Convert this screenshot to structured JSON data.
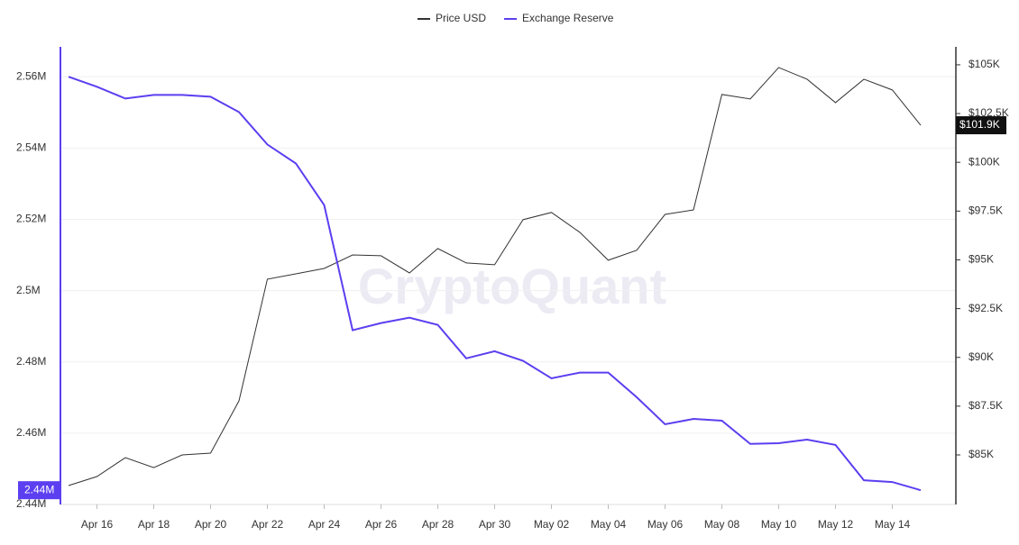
{
  "chart_data": {
    "type": "line",
    "watermark": "CryptoQuant",
    "categories": [
      null,
      "Apr 16",
      null,
      "Apr 18",
      null,
      "Apr 20",
      null,
      "Apr 22",
      null,
      "Apr 24",
      null,
      "Apr 26",
      null,
      "Apr 28",
      null,
      "Apr 30",
      null,
      "May 02",
      null,
      "May 04",
      null,
      "May 06",
      null,
      "May 08",
      null,
      "May 10",
      null,
      "May 12",
      null,
      "May 14",
      null
    ],
    "ylim": [
      2.44,
      2.5684
    ],
    "yticks": [
      {
        "value": 2.44,
        "label": "2.44M"
      },
      {
        "value": 2.46,
        "label": "2.46M"
      },
      {
        "value": 2.48,
        "label": "2.48M"
      },
      {
        "value": 2.5,
        "label": "2.5M"
      },
      {
        "value": 2.52,
        "label": "2.52M"
      },
      {
        "value": 2.54,
        "label": "2.54M"
      },
      {
        "value": 2.56,
        "label": "2.56M"
      }
    ],
    "y2lim": [
      82.46,
      105.92
    ],
    "y2ticks": [
      {
        "value": 85,
        "label": "$85K"
      },
      {
        "value": 87.5,
        "label": "$87.5K"
      },
      {
        "value": 90,
        "label": "$90K"
      },
      {
        "value": 92.5,
        "label": "$92.5K"
      },
      {
        "value": 95,
        "label": "$95K"
      },
      {
        "value": 97.5,
        "label": "$97.5K"
      },
      {
        "value": 100,
        "label": "$100K"
      },
      {
        "value": 102.5,
        "label": "$102.5K"
      },
      {
        "value": 105,
        "label": "$105K"
      }
    ],
    "grid": true,
    "legend": "top",
    "series": [
      {
        "name": "Price USD",
        "color": "#333333",
        "axis": "y2",
        "values": [
          83.43,
          83.89,
          84.86,
          84.35,
          85.0,
          85.09,
          87.77,
          94.01,
          94.28,
          94.56,
          95.25,
          95.21,
          94.33,
          95.58,
          94.84,
          94.75,
          97.06,
          97.43,
          96.41,
          94.98,
          95.49,
          97.33,
          97.56,
          103.48,
          103.25,
          104.86,
          104.26,
          103.06,
          104.26,
          103.71,
          101.9
        ],
        "value_labels": [
          null,
          null,
          null,
          null,
          null,
          null,
          null,
          null,
          null,
          null,
          null,
          null,
          null,
          null,
          null,
          null,
          null,
          null,
          null,
          null,
          null,
          null,
          null,
          null,
          null,
          null,
          null,
          null,
          null,
          null,
          "$101.9K"
        ]
      },
      {
        "name": "Exchange Reserve",
        "color": "#5b3ff0",
        "values": [
          2.56,
          2.5572,
          2.5539,
          2.5549,
          2.5549,
          2.5544,
          2.5501,
          2.541,
          2.5357,
          2.524,
          2.4889,
          2.4909,
          2.4924,
          2.4904,
          2.481,
          2.483,
          2.4803,
          2.4754,
          2.477,
          2.477,
          2.4701,
          2.4625,
          2.464,
          2.4635,
          2.457,
          2.4572,
          2.4582,
          2.4567,
          2.4468,
          2.4463,
          2.444
        ],
        "value_labels": [
          null,
          null,
          null,
          null,
          null,
          null,
          null,
          null,
          null,
          null,
          null,
          null,
          null,
          null,
          null,
          null,
          null,
          null,
          null,
          null,
          null,
          null,
          null,
          null,
          null,
          null,
          null,
          null,
          null,
          null,
          "2.44M"
        ]
      }
    ]
  }
}
